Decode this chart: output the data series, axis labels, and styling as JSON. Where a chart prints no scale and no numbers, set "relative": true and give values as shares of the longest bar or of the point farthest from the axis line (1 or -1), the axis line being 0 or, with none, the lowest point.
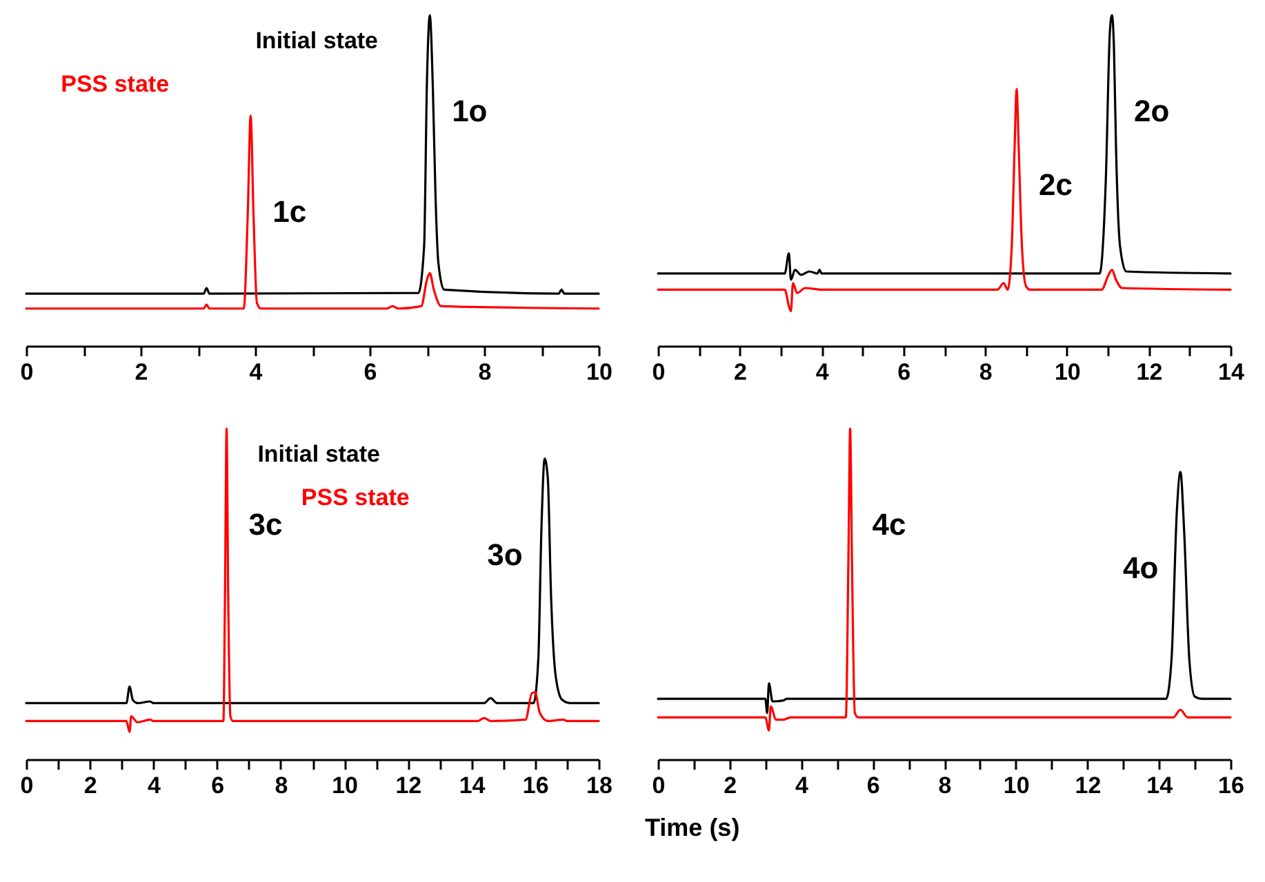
{
  "chart_data": [
    {
      "type": "line",
      "relative": true,
      "xlim": [
        0,
        10
      ],
      "xticks": [
        0,
        {
          "value": 1,
          "label": null
        },
        2,
        {
          "value": 3,
          "label": null
        },
        4,
        {
          "value": 5,
          "label": null
        },
        6,
        {
          "value": 7,
          "label": null
        },
        8,
        {
          "value": 9,
          "label": null
        },
        10
      ],
      "legend": false,
      "annotations": [
        {
          "text": "1c",
          "x": 3.92,
          "y": 0.696
        },
        {
          "text": "1o",
          "x": 7.05,
          "y": 1.0
        }
      ],
      "series": [
        {
          "name": "Initial state",
          "color": "#000000",
          "x": [
            0,
            3.1,
            3.15,
            3.2,
            3.3,
            6.85,
            6.95,
            7.0,
            7.05,
            7.1,
            7.15,
            7.2,
            7.3,
            9.3,
            9.35,
            9.4,
            10
          ],
          "values": [
            0.158,
            0.158,
            0.175,
            0.158,
            0.158,
            0.16,
            0.3,
            0.8,
            1.0,
            0.8,
            0.45,
            0.25,
            0.17,
            0.158,
            0.17,
            0.158,
            0.158
          ]
        },
        {
          "name": "PSS state",
          "color": "#ff0000",
          "x": [
            0,
            3.1,
            3.15,
            3.2,
            3.8,
            3.87,
            3.92,
            3.97,
            4.03,
            4.1,
            6.3,
            6.4,
            6.5,
            6.9,
            7.0,
            7.05,
            7.12,
            7.25,
            10
          ],
          "values": [
            0.113,
            0.113,
            0.125,
            0.113,
            0.113,
            0.4,
            0.696,
            0.4,
            0.13,
            0.113,
            0.113,
            0.12,
            0.113,
            0.12,
            0.2,
            0.22,
            0.17,
            0.12,
            0.113
          ]
        }
      ]
    },
    {
      "type": "line",
      "relative": true,
      "xlim": [
        0,
        14
      ],
      "xticks": [
        0,
        {
          "value": 1,
          "label": null
        },
        2,
        {
          "value": 3,
          "label": null
        },
        4,
        {
          "value": 5,
          "label": null
        },
        6,
        {
          "value": 7,
          "label": null
        },
        8,
        {
          "value": 9,
          "label": null
        },
        10,
        {
          "value": 11,
          "label": null
        },
        12,
        {
          "value": 13,
          "label": null
        },
        14
      ],
      "legend": false,
      "annotations": [
        {
          "text": "2c",
          "x": 8.77,
          "y": 0.777
        },
        {
          "text": "2o",
          "x": 11.1,
          "y": 1.0
        }
      ],
      "series": [
        {
          "color": "#000000",
          "x": [
            0,
            3.1,
            3.2,
            3.25,
            3.35,
            3.5,
            3.7,
            3.9,
            3.95,
            4.0,
            10.8,
            10.95,
            11.05,
            11.1,
            11.15,
            11.2,
            11.3,
            11.45,
            14
          ],
          "values": [
            0.219,
            0.219,
            0.28,
            0.2,
            0.23,
            0.215,
            0.225,
            0.219,
            0.23,
            0.219,
            0.219,
            0.5,
            0.95,
            1.0,
            0.9,
            0.6,
            0.3,
            0.225,
            0.219
          ]
        },
        {
          "color": "#ff0000",
          "x": [
            0,
            3.1,
            3.2,
            3.25,
            3.3,
            3.4,
            3.6,
            4.0,
            8.3,
            8.45,
            8.55,
            8.65,
            8.72,
            8.77,
            8.82,
            8.9,
            9.0,
            9.1,
            10.85,
            11.0,
            11.1,
            11.2,
            11.35,
            14
          ],
          "values": [
            0.17,
            0.17,
            0.12,
            0.105,
            0.19,
            0.16,
            0.175,
            0.17,
            0.17,
            0.19,
            0.17,
            0.3,
            0.6,
            0.777,
            0.6,
            0.3,
            0.18,
            0.17,
            0.17,
            0.21,
            0.23,
            0.2,
            0.175,
            0.17
          ]
        }
      ]
    },
    {
      "type": "line",
      "relative": true,
      "xlim": [
        0,
        18
      ],
      "xticks": [
        0,
        {
          "value": 1,
          "label": null
        },
        2,
        {
          "value": 3,
          "label": null
        },
        4,
        {
          "value": 5,
          "label": null
        },
        6,
        {
          "value": 7,
          "label": null
        },
        8,
        {
          "value": 9,
          "label": null
        },
        10,
        {
          "value": 11,
          "label": null
        },
        12,
        {
          "value": 13,
          "label": null
        },
        14,
        {
          "value": 15,
          "label": null
        },
        16,
        {
          "value": 17,
          "label": null
        },
        18
      ],
      "legend": false,
      "xlabel": "Time (s)",
      "annotations": [
        {
          "text": "3c",
          "x": 6.3,
          "y": 1.0
        },
        {
          "text": "3o",
          "x": 16.3,
          "y": 0.909
        }
      ],
      "series": [
        {
          "name": "Initial state",
          "color": "#000000",
          "x": [
            0,
            3.15,
            3.25,
            3.35,
            3.5,
            3.9,
            4.0,
            14.4,
            14.6,
            14.8,
            15.95,
            16.1,
            16.2,
            16.3,
            16.4,
            16.5,
            16.65,
            16.85,
            17.1,
            18
          ],
          "values": [
            0.17,
            0.17,
            0.22,
            0.18,
            0.17,
            0.175,
            0.17,
            0.17,
            0.185,
            0.17,
            0.17,
            0.3,
            0.7,
            0.909,
            0.85,
            0.5,
            0.25,
            0.18,
            0.17,
            0.17
          ]
        },
        {
          "name": "PSS state",
          "color": "#ff0000",
          "x": [
            0,
            3.15,
            3.25,
            3.3,
            3.5,
            3.9,
            4.0,
            6.2,
            6.25,
            6.3,
            6.35,
            6.42,
            6.5,
            14.2,
            14.4,
            14.6,
            15.7,
            15.9,
            16.0,
            16.15,
            16.4,
            16.9,
            17.0,
            18
          ],
          "values": [
            0.116,
            0.116,
            0.083,
            0.13,
            0.112,
            0.12,
            0.116,
            0.116,
            0.5,
            1.0,
            0.5,
            0.13,
            0.116,
            0.116,
            0.125,
            0.116,
            0.12,
            0.2,
            0.203,
            0.14,
            0.116,
            0.12,
            0.116,
            0.116
          ]
        }
      ]
    },
    {
      "type": "line",
      "relative": true,
      "xlim": [
        0,
        16
      ],
      "xticks": [
        0,
        {
          "value": 1,
          "label": null
        },
        2,
        {
          "value": 3,
          "label": null
        },
        4,
        {
          "value": 5,
          "label": null
        },
        6,
        {
          "value": 7,
          "label": null
        },
        8,
        {
          "value": 9,
          "label": null
        },
        10,
        {
          "value": 11,
          "label": null
        },
        12,
        {
          "value": 13,
          "label": null
        },
        14,
        {
          "value": 15,
          "label": null
        },
        16
      ],
      "legend": false,
      "annotations": [
        {
          "text": "4c",
          "x": 5.37,
          "y": 1.0
        },
        {
          "text": "4o",
          "x": 14.6,
          "y": 0.869
        }
      ],
      "series": [
        {
          "color": "#000000",
          "x": [
            0,
            3.0,
            3.05,
            3.1,
            3.2,
            3.5,
            3.6,
            14.2,
            14.35,
            14.5,
            14.6,
            14.7,
            14.85,
            15.0,
            15.2,
            16
          ],
          "values": [
            0.183,
            0.183,
            0.14,
            0.23,
            0.175,
            0.178,
            0.183,
            0.183,
            0.3,
            0.75,
            0.869,
            0.7,
            0.3,
            0.19,
            0.183,
            0.183
          ]
        },
        {
          "color": "#ff0000",
          "x": [
            0,
            3.0,
            3.1,
            3.15,
            3.3,
            3.5,
            3.7,
            5.25,
            5.32,
            5.37,
            5.42,
            5.5,
            5.6,
            14.4,
            14.6,
            14.8,
            16
          ],
          "values": [
            0.127,
            0.127,
            0.087,
            0.16,
            0.12,
            0.12,
            0.127,
            0.127,
            0.6,
            1.0,
            0.6,
            0.14,
            0.127,
            0.127,
            0.15,
            0.127,
            0.127
          ]
        }
      ]
    }
  ]
}
